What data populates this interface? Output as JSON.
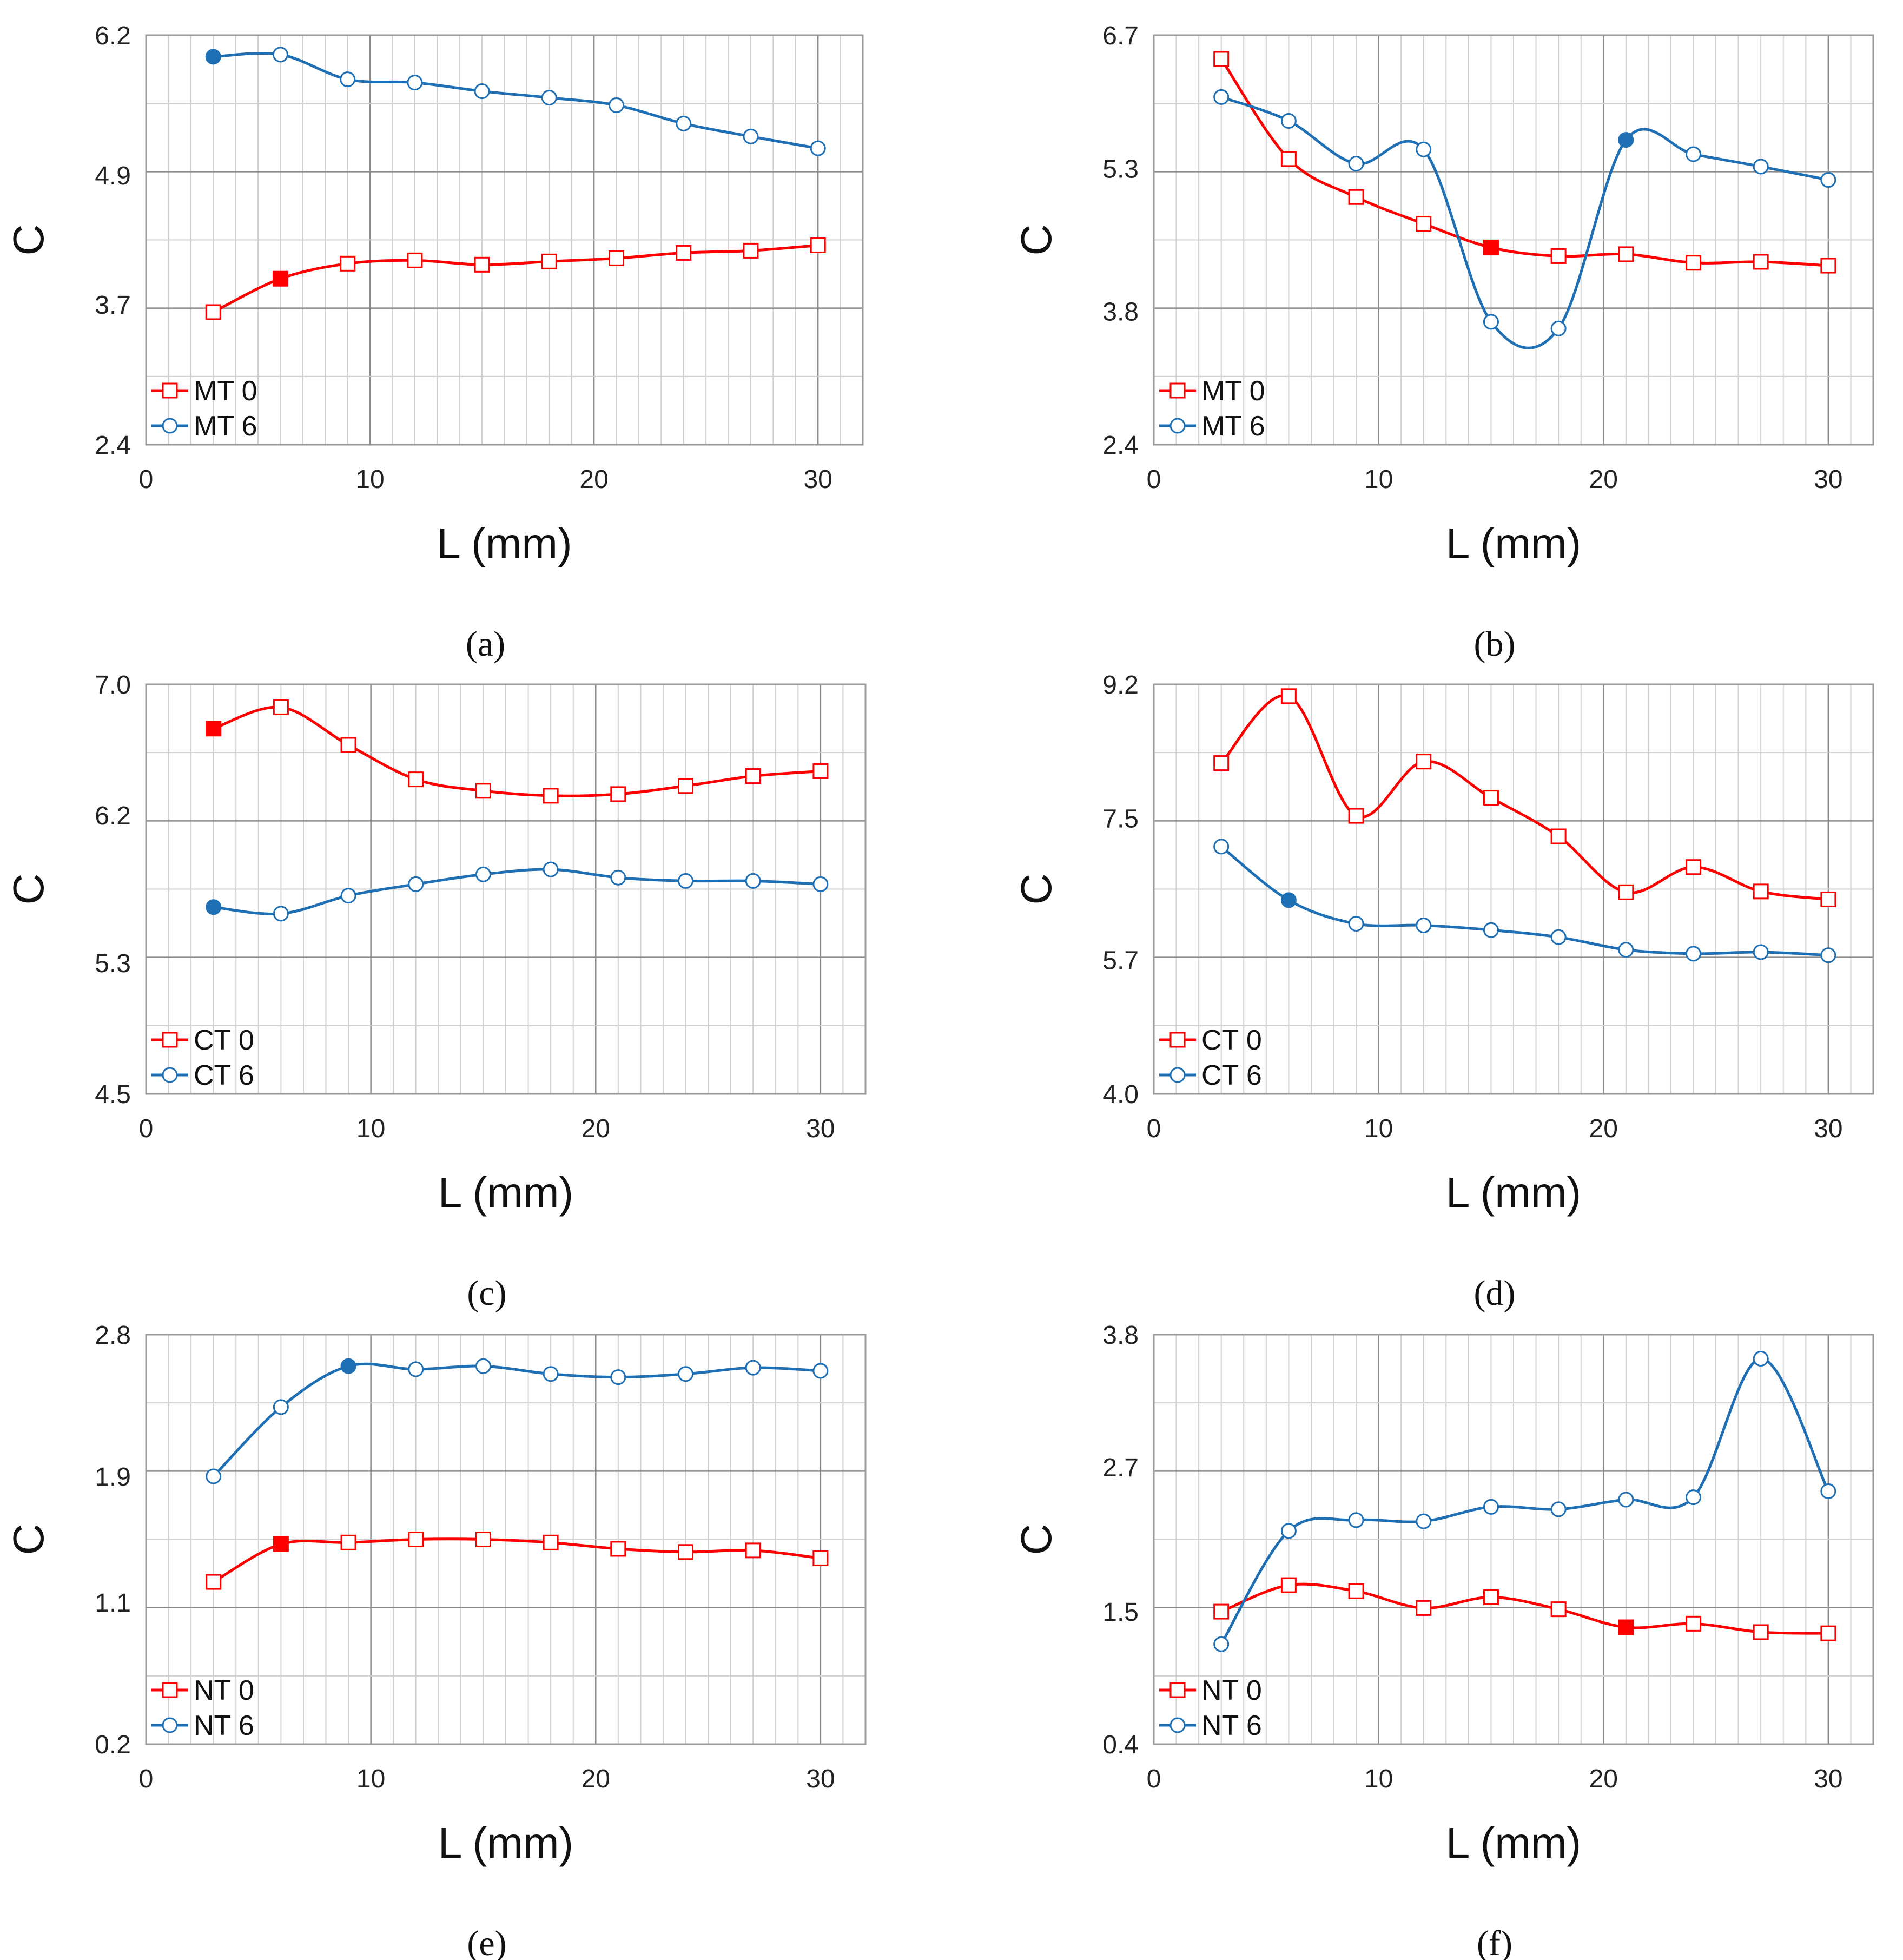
{
  "colors": {
    "series0": "#ff0000",
    "series6": "#1f6fb5",
    "grid": "#cfcfcf",
    "grid_major": "#8a8a8a"
  },
  "chart_data": [
    {
      "type": "line",
      "label": "(a)",
      "xlabel": "L (mm)",
      "ylabel": "C",
      "xlim": [
        0,
        32
      ],
      "xticks": [
        0,
        10,
        20,
        30
      ],
      "ylim": [
        2.4,
        6.2
      ],
      "yticks": [
        "2.4",
        "3.7",
        "4.9",
        "6.2"
      ],
      "x": [
        3,
        6,
        9,
        12,
        15,
        18,
        21,
        24,
        27,
        30
      ],
      "series": [
        {
          "name": "MT 0",
          "values": [
            3.63,
            3.94,
            4.08,
            4.11,
            4.07,
            4.1,
            4.13,
            4.18,
            4.2,
            4.25
          ],
          "highlight_index": 1
        },
        {
          "name": "MT 6",
          "values": [
            6.0,
            6.02,
            5.79,
            5.76,
            5.68,
            5.62,
            5.55,
            5.38,
            5.26,
            5.15
          ],
          "highlight_index": 0
        }
      ]
    },
    {
      "type": "line",
      "label": "(b)",
      "xlabel": "L (mm)",
      "ylabel": "C",
      "xlim": [
        0,
        32
      ],
      "xticks": [
        0,
        10,
        20,
        30
      ],
      "ylim": [
        2.4,
        6.7
      ],
      "yticks": [
        "2.4",
        "3.8",
        "5.3",
        "6.7"
      ],
      "x": [
        3,
        6,
        9,
        12,
        15,
        18,
        21,
        24,
        27,
        30
      ],
      "series": [
        {
          "name": "MT 0",
          "values": [
            6.45,
            5.4,
            5.0,
            4.72,
            4.47,
            4.38,
            4.4,
            4.31,
            4.32,
            4.28
          ],
          "highlight_index": 4
        },
        {
          "name": "MT 6",
          "values": [
            6.05,
            5.8,
            5.35,
            5.5,
            3.69,
            3.62,
            5.6,
            5.45,
            5.32,
            5.18
          ],
          "highlight_index": 6
        }
      ]
    },
    {
      "type": "line",
      "label": "(c)",
      "xlabel": "L (mm)",
      "ylabel": "C",
      "xlim": [
        0,
        32
      ],
      "xticks": [
        0,
        10,
        20,
        30
      ],
      "ylim": [
        4.5,
        7.0
      ],
      "yticks": [
        "4.5",
        "5.3",
        "6.2",
        "7.0"
      ],
      "x": [
        3,
        6,
        9,
        12,
        15,
        18,
        21,
        24,
        27,
        30
      ],
      "series": [
        {
          "name": "CT 0",
          "values": [
            6.73,
            6.86,
            6.63,
            6.42,
            6.35,
            6.32,
            6.33,
            6.38,
            6.44,
            6.47
          ],
          "highlight_index": 0
        },
        {
          "name": "CT 6",
          "values": [
            5.64,
            5.6,
            5.71,
            5.78,
            5.84,
            5.87,
            5.82,
            5.8,
            5.8,
            5.78
          ],
          "highlight_index": 0
        }
      ]
    },
    {
      "type": "line",
      "label": "(d)",
      "xlabel": "L (mm)",
      "ylabel": "C",
      "xlim": [
        0,
        32
      ],
      "xticks": [
        0,
        10,
        20,
        30
      ],
      "ylim": [
        4.0,
        9.2
      ],
      "yticks": [
        "4.0",
        "5.7",
        "7.5",
        "9.2"
      ],
      "x": [
        3,
        6,
        9,
        12,
        15,
        18,
        21,
        24,
        27,
        30
      ],
      "series": [
        {
          "name": "CT 0",
          "values": [
            8.2,
            9.05,
            7.53,
            8.22,
            7.76,
            7.27,
            6.56,
            6.88,
            6.57,
            6.47
          ],
          "highlight_index": -1
        },
        {
          "name": "CT 6",
          "values": [
            7.14,
            6.46,
            6.16,
            6.14,
            6.08,
            5.99,
            5.83,
            5.78,
            5.8,
            5.76
          ],
          "highlight_index": 1
        }
      ]
    },
    {
      "type": "line",
      "label": "(e)",
      "xlabel": "L (mm)",
      "ylabel": "C",
      "xlim": [
        0,
        32
      ],
      "xticks": [
        0,
        10,
        20,
        30
      ],
      "ylim": [
        0.2,
        2.8
      ],
      "yticks": [
        "0.2",
        "1.1",
        "1.9",
        "2.8"
      ],
      "x": [
        3,
        6,
        9,
        12,
        15,
        18,
        21,
        24,
        27,
        30
      ],
      "series": [
        {
          "name": "NT 0",
          "values": [
            1.23,
            1.47,
            1.48,
            1.5,
            1.5,
            1.48,
            1.44,
            1.42,
            1.43,
            1.38
          ],
          "highlight_index": 1
        },
        {
          "name": "NT 6",
          "values": [
            1.9,
            2.34,
            2.6,
            2.58,
            2.6,
            2.55,
            2.53,
            2.55,
            2.59,
            2.57
          ],
          "highlight_index": 2
        }
      ]
    },
    {
      "type": "line",
      "label": "(f)",
      "xlabel": "L (mm)",
      "ylabel": "C",
      "xlim": [
        0,
        32
      ],
      "xticks": [
        0,
        10,
        20,
        30
      ],
      "ylim": [
        0.4,
        3.8
      ],
      "yticks": [
        "0.4",
        "1.5",
        "2.7",
        "3.8"
      ],
      "x": [
        3,
        6,
        9,
        12,
        15,
        18,
        21,
        24,
        27,
        30
      ],
      "series": [
        {
          "name": "NT 0",
          "values": [
            1.5,
            1.72,
            1.67,
            1.53,
            1.62,
            1.52,
            1.37,
            1.4,
            1.33,
            1.32
          ],
          "highlight_index": 6
        },
        {
          "name": "NT 6",
          "values": [
            1.23,
            2.17,
            2.26,
            2.25,
            2.37,
            2.35,
            2.43,
            2.45,
            3.6,
            2.5
          ],
          "highlight_index": -1
        }
      ]
    }
  ]
}
